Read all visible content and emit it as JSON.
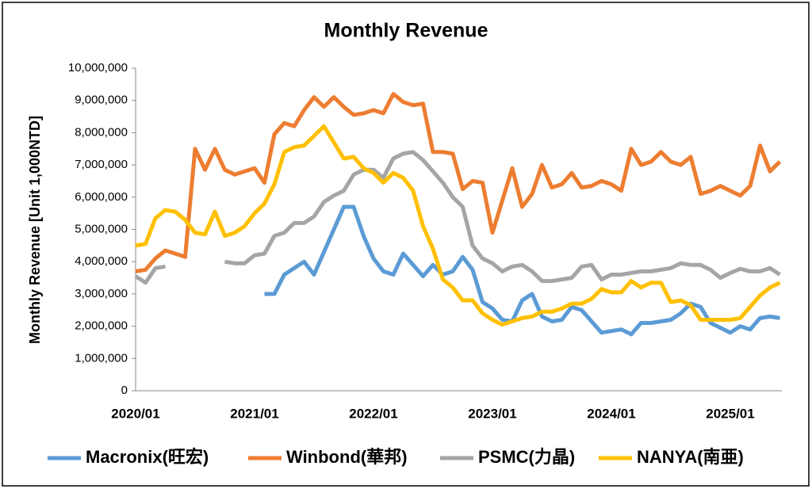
{
  "chart_data": {
    "type": "line",
    "title": "Monthly Revenue",
    "y_label": "Monthly Revenue [Unit 1,000NTD]",
    "categories": [
      "2020/01",
      null,
      null,
      null,
      null,
      null,
      null,
      null,
      null,
      null,
      null,
      null,
      "2021/01",
      null,
      null,
      null,
      null,
      null,
      null,
      null,
      null,
      null,
      null,
      null,
      "2022/01",
      null,
      null,
      null,
      null,
      null,
      null,
      null,
      null,
      null,
      null,
      null,
      "2023/01",
      null,
      null,
      null,
      null,
      null,
      null,
      null,
      null,
      null,
      null,
      null,
      "2024/01",
      null,
      null,
      null,
      null,
      null,
      null,
      null,
      null,
      null,
      null,
      null,
      "2025/01",
      null,
      null,
      null,
      null,
      null
    ],
    "ylim": [
      0,
      10000000
    ],
    "yticks": [
      0,
      {
        "value": 1000000,
        "label": "1,000,000"
      },
      {
        "value": 2000000,
        "label": "2,000,000"
      },
      {
        "value": 3000000,
        "label": "3,000,000"
      },
      {
        "value": 4000000,
        "label": "4,000,000"
      },
      {
        "value": 5000000,
        "label": "5,000,000"
      },
      {
        "value": 6000000,
        "label": "6,000,000"
      },
      {
        "value": 7000000,
        "label": "7,000,000"
      },
      {
        "value": 8000000,
        "label": "8,000,000"
      },
      {
        "value": 9000000,
        "label": "9,000,000"
      },
      {
        "value": 10000000,
        "label": "10,000,000"
      }
    ],
    "grid": false,
    "legend": "bottom",
    "series": [
      {
        "name": "Macronix(旺宏)",
        "color": "#5b9bd5",
        "values": [
          null,
          null,
          null,
          null,
          null,
          null,
          null,
          null,
          null,
          null,
          null,
          null,
          null,
          3000000,
          3000000,
          3600000,
          3800000,
          4000000,
          3600000,
          4300000,
          5000000,
          5700000,
          5700000,
          4800000,
          4100000,
          3700000,
          3600000,
          4250000,
          3900000,
          3550000,
          3900000,
          3600000,
          3700000,
          4150000,
          3750000,
          2750000,
          2550000,
          2200000,
          2150000,
          2800000,
          3000000,
          2300000,
          2150000,
          2200000,
          2600000,
          2500000,
          2150000,
          1800000,
          1850000,
          1900000,
          1750000,
          2100000,
          2100000,
          2150000,
          2200000,
          2400000,
          2700000,
          2600000,
          2100000,
          1950000,
          1800000,
          2000000,
          1900000,
          2250000,
          2300000,
          2250000
        ]
      },
      {
        "name": "Winbond(華邦)",
        "color": "#ed7d31",
        "values": [
          3700000,
          3750000,
          4100000,
          4350000,
          4250000,
          4150000,
          7500000,
          6850000,
          7500000,
          6850000,
          6700000,
          6800000,
          6900000,
          6450000,
          7950000,
          8300000,
          8200000,
          8700000,
          9100000,
          8800000,
          9100000,
          8800000,
          8550000,
          8600000,
          8700000,
          8600000,
          9200000,
          8950000,
          8850000,
          8900000,
          7400000,
          7400000,
          7350000,
          6250000,
          6500000,
          6450000,
          4900000,
          5900000,
          6900000,
          5700000,
          6100000,
          7000000,
          6300000,
          6400000,
          6750000,
          6300000,
          6350000,
          6500000,
          6400000,
          6200000,
          7500000,
          7000000,
          7100000,
          7400000,
          7100000,
          7000000,
          7250000,
          6100000,
          6200000,
          6350000,
          6200000,
          6050000,
          6350000,
          7600000,
          6800000,
          7100000
        ]
      },
      {
        "name": "PSMC(力晶)",
        "color": "#a5a5a5",
        "values": [
          3550000,
          3350000,
          3800000,
          3850000,
          null,
          null,
          null,
          null,
          null,
          4000000,
          3950000,
          3950000,
          4200000,
          4250000,
          4800000,
          4900000,
          5200000,
          5200000,
          5400000,
          5850000,
          6050000,
          6200000,
          6700000,
          6850000,
          6850000,
          6600000,
          7200000,
          7350000,
          7400000,
          7150000,
          6800000,
          6450000,
          6000000,
          5700000,
          4500000,
          4100000,
          3950000,
          3700000,
          3850000,
          3900000,
          3700000,
          3400000,
          3400000,
          3450000,
          3500000,
          3850000,
          3900000,
          3450000,
          3600000,
          3600000,
          3650000,
          3700000,
          3700000,
          3750000,
          3800000,
          3950000,
          3900000,
          3900000,
          3750000,
          3500000,
          3650000,
          3780000,
          3700000,
          3700000,
          3800000,
          3600000
        ]
      },
      {
        "name": "NANYA(南亜)",
        "color": "#ffc000",
        "values": [
          4500000,
          4550000,
          5350000,
          5600000,
          5550000,
          5300000,
          4900000,
          4850000,
          5550000,
          4800000,
          4900000,
          5100000,
          5500000,
          5800000,
          6400000,
          7400000,
          7550000,
          7600000,
          7900000,
          8200000,
          7700000,
          7200000,
          7250000,
          6900000,
          6750000,
          6450000,
          6750000,
          6600000,
          6200000,
          5100000,
          4400000,
          3450000,
          3200000,
          2800000,
          2800000,
          2400000,
          2200000,
          2050000,
          2150000,
          2250000,
          2300000,
          2450000,
          2450000,
          2550000,
          2700000,
          2700000,
          2850000,
          3150000,
          3050000,
          3050000,
          3400000,
          3200000,
          3350000,
          3350000,
          2750000,
          2800000,
          2650000,
          2200000,
          2200000,
          2200000,
          2200000,
          2250000,
          2600000,
          2950000,
          3200000,
          3350000
        ]
      }
    ]
  }
}
